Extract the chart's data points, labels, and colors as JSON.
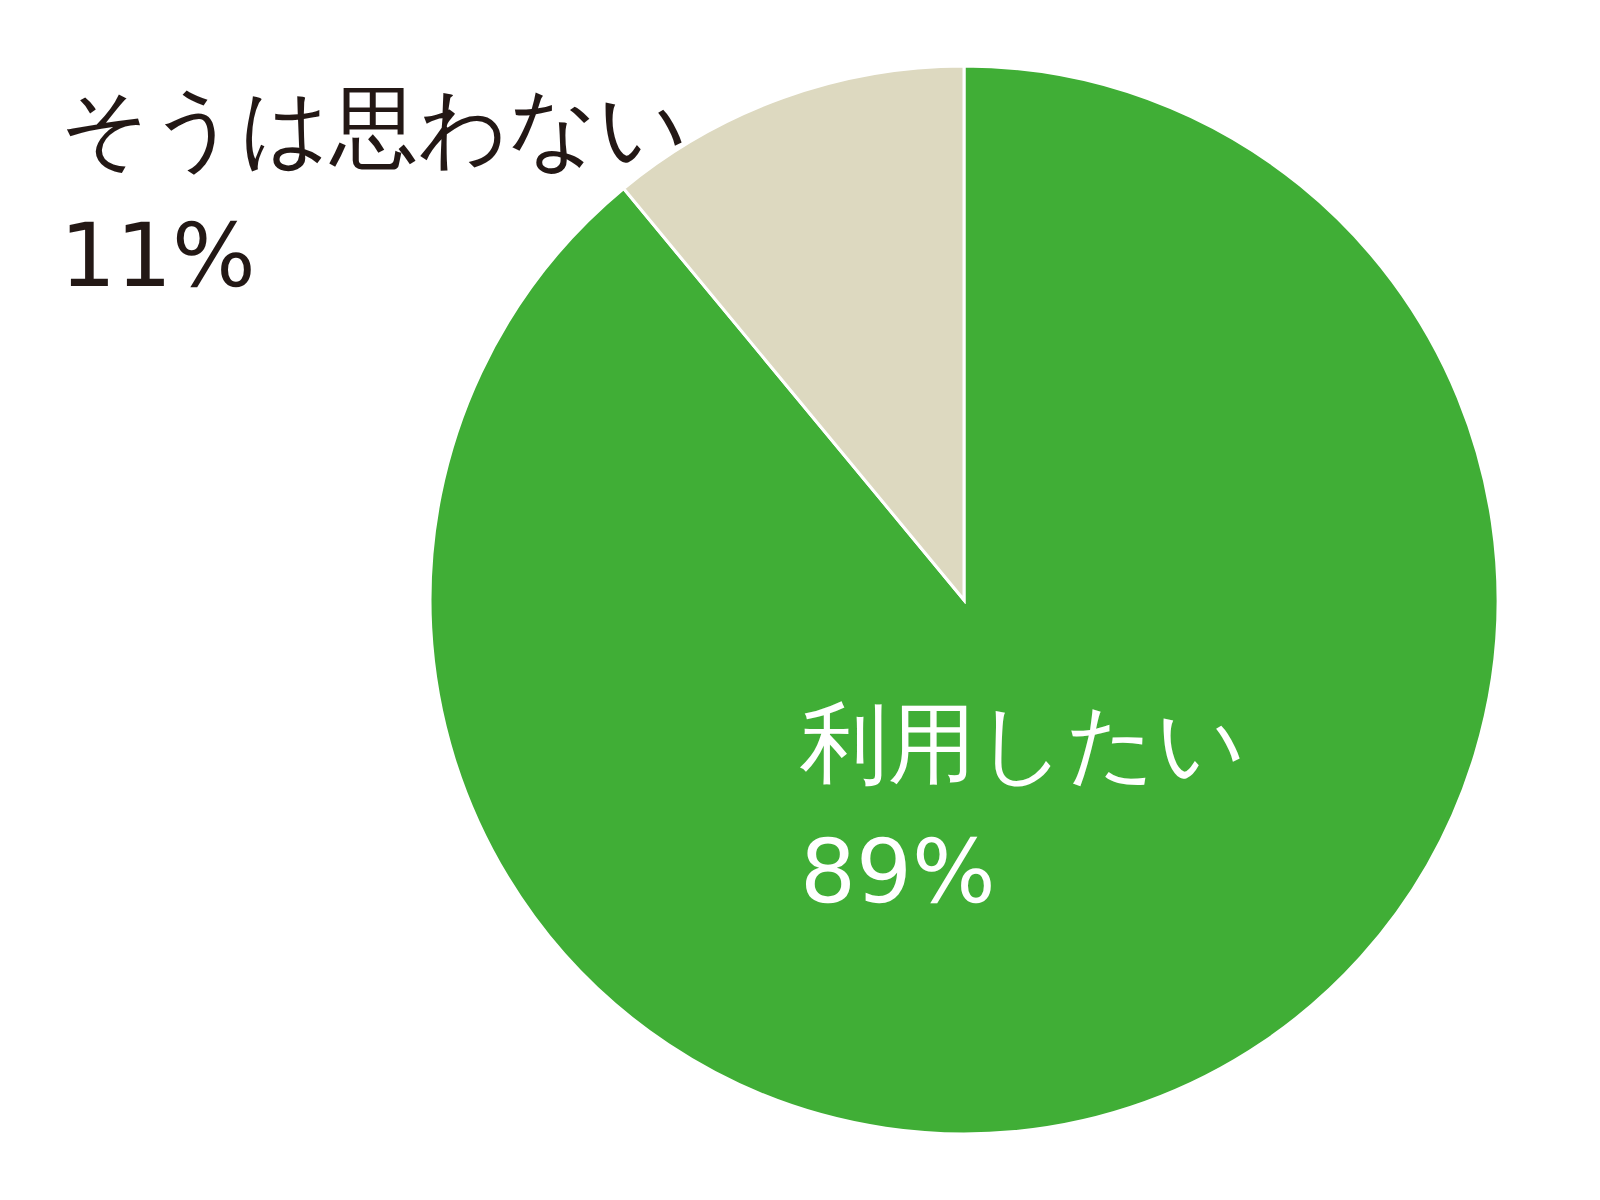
{
  "chart_data": {
    "type": "pie",
    "categories": [
      "利用したい",
      "そうは思わない"
    ],
    "values": [
      89,
      11
    ],
    "colors": [
      "#40ae36",
      "#ddd9c0"
    ],
    "value_labels": [
      "89%",
      "11%"
    ]
  }
}
